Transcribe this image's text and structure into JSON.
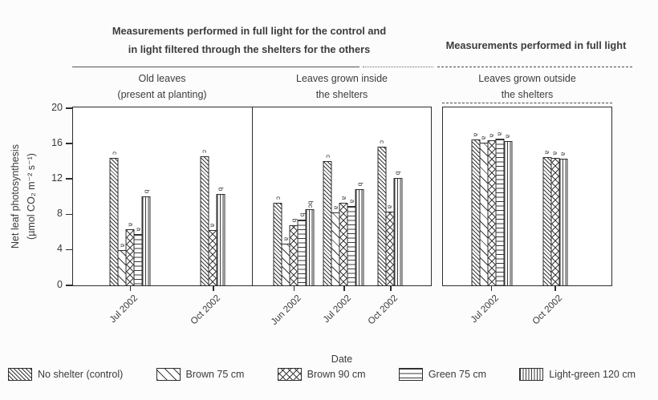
{
  "chart_data": {
    "type": "bar",
    "headers": {
      "left": [
        "Measurements performed in full light for the control and",
        "in light filtered through the shelters for the others"
      ],
      "right": "Measurements performed in full light"
    },
    "ylabel": "Net leaf photosynthesis",
    "ylabel_units": "(µmol CO₂ m⁻² s⁻¹)",
    "xlabel": "Date",
    "ylim": [
      0,
      20
    ],
    "yticks": [
      0,
      4,
      8,
      12,
      16,
      20
    ],
    "legend": [
      {
        "label": "No shelter (control)",
        "pattern": "control"
      },
      {
        "label": "Brown 75 cm",
        "pattern": "brown75"
      },
      {
        "label": "Brown 90 cm",
        "pattern": "brown90"
      },
      {
        "label": "Green 75 cm",
        "pattern": "green75"
      },
      {
        "label": "Light-green 120 cm",
        "pattern": "lightgreen120"
      }
    ],
    "panels": [
      {
        "title": [
          "Old leaves",
          "(present at planting)"
        ],
        "groups": [
          {
            "date": "Jul 2002",
            "x_frac": 0.32,
            "bars": [
              {
                "series": "No shelter (control)",
                "pattern": "control",
                "value": 14.4,
                "letter": "c"
              },
              {
                "series": "Brown 75 cm",
                "pattern": "brown75",
                "value": 4.0,
                "letter": "a"
              },
              {
                "series": "Brown 90 cm",
                "pattern": "brown90",
                "value": 6.3,
                "letter": "a"
              },
              {
                "series": "Green 75 cm",
                "pattern": "green75",
                "value": 5.8,
                "letter": "a"
              },
              {
                "series": "Light-green 120 cm",
                "pattern": "lightgreen120",
                "value": 10.0,
                "letter": "b"
              }
            ]
          },
          {
            "date": "Oct 2002",
            "x_frac": 0.78,
            "bars": [
              {
                "series": "No shelter (control)",
                "pattern": "control",
                "value": 14.6,
                "letter": "c"
              },
              {
                "series": "Brown 90 cm",
                "pattern": "brown90",
                "value": 6.2,
                "letter": "a"
              },
              {
                "series": "Light-green 120 cm",
                "pattern": "lightgreen120",
                "value": 10.3,
                "letter": "b"
              }
            ]
          }
        ]
      },
      {
        "title": [
          "Leaves grown inside",
          "the shelters"
        ],
        "groups": [
          {
            "date": "Jun 2002",
            "x_frac": 0.23,
            "bars": [
              {
                "series": "No shelter (control)",
                "pattern": "control",
                "value": 9.3,
                "letter": "c"
              },
              {
                "series": "Brown 75 cm",
                "pattern": "brown75",
                "value": 4.7,
                "letter": "a"
              },
              {
                "series": "Brown 90 cm",
                "pattern": "brown90",
                "value": 6.8,
                "letter": "b"
              },
              {
                "series": "Green 75 cm",
                "pattern": "green75",
                "value": 7.4,
                "letter": "b"
              },
              {
                "series": "Light-green 120 cm",
                "pattern": "lightgreen120",
                "value": 8.6,
                "letter": "bc"
              }
            ]
          },
          {
            "date": "Jul 2002",
            "x_frac": 0.51,
            "bars": [
              {
                "series": "No shelter (control)",
                "pattern": "control",
                "value": 14.0,
                "letter": "c"
              },
              {
                "series": "Brown 75 cm",
                "pattern": "brown75",
                "value": 8.2,
                "letter": "a"
              },
              {
                "series": "Brown 90 cm",
                "pattern": "brown90",
                "value": 9.3,
                "letter": "a"
              },
              {
                "series": "Green 75 cm",
                "pattern": "green75",
                "value": 9.0,
                "letter": "a"
              },
              {
                "series": "Light-green 120 cm",
                "pattern": "lightgreen120",
                "value": 10.9,
                "letter": "b"
              }
            ]
          },
          {
            "date": "Oct 2002",
            "x_frac": 0.77,
            "bars": [
              {
                "series": "No shelter (control)",
                "pattern": "control",
                "value": 15.7,
                "letter": "c"
              },
              {
                "series": "Brown 90 cm",
                "pattern": "brown90",
                "value": 8.3,
                "letter": "a"
              },
              {
                "series": "Light-green 120 cm",
                "pattern": "lightgreen120",
                "value": 12.1,
                "letter": "b"
              }
            ]
          }
        ]
      },
      {
        "title": [
          "Leaves grown outside",
          "the shelters"
        ],
        "groups": [
          {
            "date": "Jul 2002",
            "x_frac": 0.29,
            "bars": [
              {
                "series": "No shelter (control)",
                "pattern": "control",
                "value": 16.5,
                "letter": "a"
              },
              {
                "series": "Brown 75 cm",
                "pattern": "brown75",
                "value": 16.1,
                "letter": "a"
              },
              {
                "series": "Brown 90 cm",
                "pattern": "brown90",
                "value": 16.4,
                "letter": "a"
              },
              {
                "series": "Green 75 cm",
                "pattern": "green75",
                "value": 16.6,
                "letter": "a"
              },
              {
                "series": "Light-green 120 cm",
                "pattern": "lightgreen120",
                "value": 16.3,
                "letter": "a"
              }
            ]
          },
          {
            "date": "Oct 2002",
            "x_frac": 0.665,
            "bars": [
              {
                "series": "No shelter (control)",
                "pattern": "control",
                "value": 14.5,
                "letter": "a"
              },
              {
                "series": "Brown 90 cm",
                "pattern": "brown90",
                "value": 14.4,
                "letter": "a"
              },
              {
                "series": "Light-green 120 cm",
                "pattern": "lightgreen120",
                "value": 14.3,
                "letter": "a"
              }
            ]
          }
        ]
      }
    ]
  }
}
